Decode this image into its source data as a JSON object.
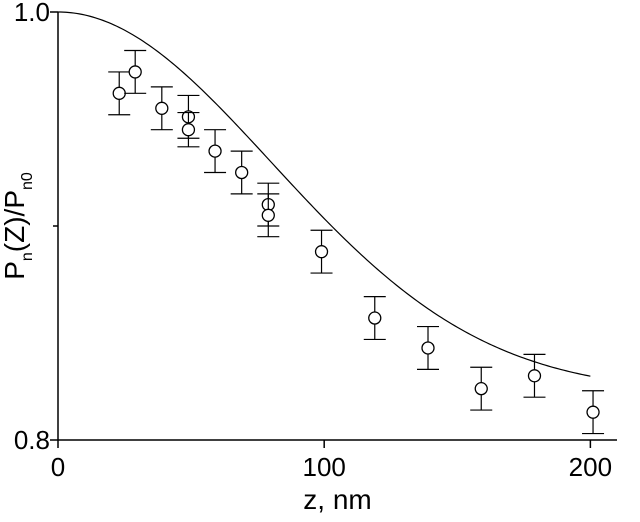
{
  "chart_data": {
    "type": "scatter",
    "title": "",
    "xlabel": "z, nm",
    "ylabel": {
      "parts": [
        {
          "text": "P",
          "sub": false
        },
        {
          "text": "n",
          "sub": true
        },
        {
          "text": "(Z)/P",
          "sub": false
        },
        {
          "text": "n0",
          "sub": true
        }
      ]
    },
    "xlim": [
      0,
      210
    ],
    "ylim": [
      0.8,
      1.0
    ],
    "xticks": [
      0,
      100,
      200
    ],
    "xtick_labels": [
      "0",
      "100",
      "200"
    ],
    "yticks": [
      0.8,
      1.0
    ],
    "ytick_labels": [
      "0.8",
      "1.0"
    ],
    "y_minor_ticks": [
      0.9
    ],
    "grid": false,
    "series": [
      {
        "kind": "points_with_errorbars",
        "x": [
          23,
          29,
          39,
          49,
          49,
          59,
          69,
          79,
          79,
          99,
          119,
          139,
          159,
          179,
          201
        ],
        "y": [
          0.962,
          0.972,
          0.955,
          0.951,
          0.945,
          0.935,
          0.925,
          0.91,
          0.905,
          0.888,
          0.857,
          0.843,
          0.824,
          0.83,
          0.813
        ],
        "err": [
          0.01,
          0.01,
          0.01,
          0.01,
          0.008,
          0.01,
          0.01,
          0.01,
          0.01,
          0.01,
          0.01,
          0.01,
          0.01,
          0.01,
          0.01
        ]
      },
      {
        "kind": "fit_curve",
        "form": "gaussian",
        "y0": 0.822,
        "amplitude": 0.178,
        "x0": 0,
        "sigma": 80
      }
    ]
  }
}
